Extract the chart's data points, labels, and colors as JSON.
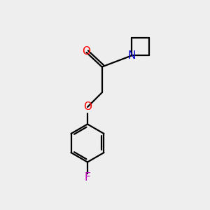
{
  "bg_color": "#eeeeee",
  "bond_color": "#000000",
  "O_color": "#ff0000",
  "N_color": "#0000cd",
  "F_color": "#bb00bb",
  "line_width": 1.6,
  "font_size": 11,
  "fig_size": [
    3.0,
    3.0
  ],
  "dpi": 100,
  "xlim": [
    0,
    10
  ],
  "ylim": [
    0,
    10
  ]
}
